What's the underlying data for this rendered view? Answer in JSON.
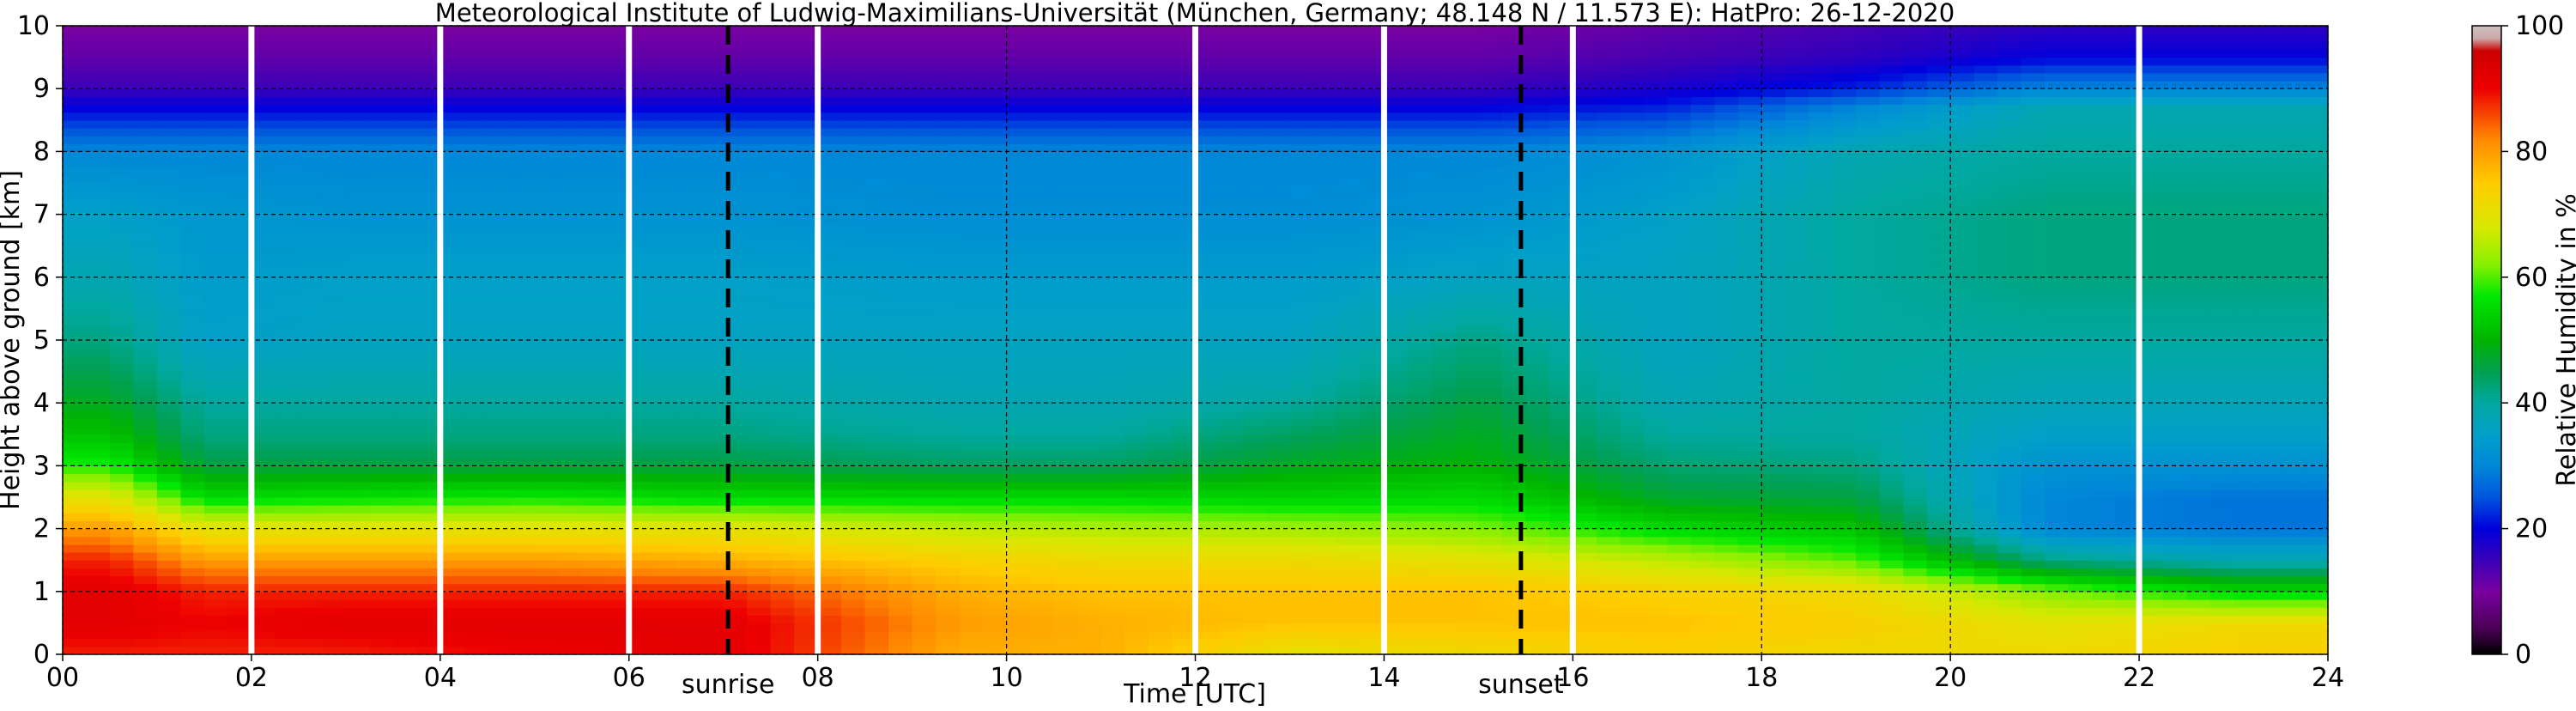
{
  "chart_data": {
    "type": "heatmap",
    "title": "Meteorological Institute of Ludwig-Maximilians-Universität (München, Germany; 48.148 N / 11.573 E):    HatPro: 26-12-2020",
    "xlabel": "Time [UTC]",
    "ylabel": "Height above ground [km]",
    "xlim": [
      0,
      24
    ],
    "ylim": [
      0,
      10
    ],
    "x_ticks": [
      "00",
      "02",
      "04",
      "06",
      "08",
      "10",
      "12",
      "14",
      "16",
      "18",
      "20",
      "22",
      "24"
    ],
    "y_ticks": [
      "0",
      "1",
      "2",
      "3",
      "4",
      "5",
      "6",
      "7",
      "8",
      "9",
      "10"
    ],
    "grid": true,
    "colorbar": {
      "label": "Relative Humidity in %",
      "range": [
        0,
        100
      ],
      "ticks": [
        "0",
        "20",
        "40",
        "60",
        "80",
        "100"
      ]
    },
    "white_gaps_utc": [
      2,
      4,
      6,
      8,
      12,
      14,
      16,
      22
    ],
    "events": [
      {
        "label": "sunrise",
        "time_utc": 7.05
      },
      {
        "label": "sunset",
        "time_utc": 15.45
      }
    ],
    "profiles": [
      {
        "time_utc": 0.5,
        "heights_km": [
          0,
          0.5,
          1.0,
          1.5,
          2.0,
          2.5,
          3.0,
          3.5,
          4.0,
          5.0,
          6.0,
          7.0,
          8.0,
          8.7,
          9.0,
          9.5,
          10.0
        ],
        "rh_percent": [
          88,
          92,
          92,
          88,
          80,
          70,
          58,
          52,
          48,
          42,
          38,
          35,
          30,
          20,
          15,
          12,
          10
        ]
      },
      {
        "time_utc": 1.5,
        "heights_km": [
          0,
          0.5,
          1.0,
          1.5,
          2.0,
          2.5,
          3.0,
          3.5,
          4.0,
          5.0,
          6.0,
          7.0,
          8.0,
          8.7,
          9.0,
          9.5,
          10.0
        ],
        "rh_percent": [
          88,
          90,
          88,
          80,
          70,
          55,
          46,
          42,
          40,
          35,
          34,
          33,
          30,
          20,
          15,
          12,
          10
        ]
      },
      {
        "time_utc": 3.0,
        "heights_km": [
          0,
          0.5,
          1.0,
          1.5,
          2.0,
          2.5,
          3.0,
          3.5,
          4.0,
          5.0,
          6.0,
          7.0,
          8.0,
          8.7,
          9.0,
          9.5,
          10.0
        ],
        "rh_percent": [
          88,
          92,
          88,
          80,
          70,
          56,
          46,
          42,
          40,
          36,
          35,
          32,
          30,
          20,
          15,
          12,
          10
        ]
      },
      {
        "time_utc": 5.0,
        "heights_km": [
          0,
          0.5,
          1.0,
          1.5,
          2.0,
          2.5,
          3.0,
          3.5,
          4.0,
          5.0,
          6.0,
          7.0,
          8.0,
          8.7,
          9.0,
          9.5,
          10.0
        ],
        "rh_percent": [
          90,
          92,
          88,
          80,
          70,
          57,
          46,
          42,
          40,
          36,
          35,
          32,
          30,
          20,
          15,
          12,
          10
        ]
      },
      {
        "time_utc": 7.0,
        "heights_km": [
          0,
          0.5,
          1.0,
          1.5,
          2.0,
          2.5,
          3.0,
          3.5,
          4.0,
          5.0,
          6.0,
          7.0,
          8.0,
          8.7,
          9.0,
          9.5,
          10.0
        ],
        "rh_percent": [
          92,
          92,
          88,
          78,
          70,
          55,
          46,
          42,
          40,
          36,
          35,
          32,
          30,
          20,
          15,
          12,
          10
        ]
      },
      {
        "time_utc": 9.5,
        "heights_km": [
          0,
          0.5,
          1.0,
          1.5,
          2.0,
          2.5,
          3.0,
          3.5,
          4.0,
          5.0,
          6.0,
          7.0,
          8.0,
          8.7,
          9.0,
          9.5,
          10.0
        ],
        "rh_percent": [
          78,
          80,
          78,
          74,
          66,
          55,
          44,
          40,
          38,
          36,
          34,
          31,
          30,
          20,
          15,
          12,
          10
        ]
      },
      {
        "time_utc": 11.0,
        "heights_km": [
          0,
          0.5,
          1.0,
          1.5,
          2.0,
          2.5,
          3.0,
          3.5,
          4.0,
          5.0,
          6.0,
          7.0,
          8.0,
          8.7,
          9.0,
          9.5,
          10.0
        ],
        "rh_percent": [
          78,
          78,
          76,
          72,
          65,
          55,
          44,
          40,
          38,
          36,
          34,
          31,
          30,
          20,
          15,
          12,
          10
        ]
      },
      {
        "time_utc": 13.0,
        "heights_km": [
          0,
          0.5,
          1.0,
          1.5,
          2.0,
          2.5,
          3.0,
          3.5,
          4.0,
          5.0,
          6.0,
          7.0,
          8.0,
          8.7,
          9.0,
          9.5,
          10.0
        ],
        "rh_percent": [
          70,
          76,
          76,
          72,
          64,
          54,
          48,
          44,
          40,
          36,
          34,
          31,
          30,
          20,
          15,
          12,
          10
        ]
      },
      {
        "time_utc": 15.0,
        "heights_km": [
          0,
          0.5,
          1.0,
          1.5,
          2.0,
          2.5,
          3.0,
          3.5,
          4.0,
          5.0,
          6.0,
          7.0,
          8.0,
          8.7,
          9.0,
          9.5,
          10.0
        ],
        "rh_percent": [
          72,
          76,
          76,
          70,
          62,
          55,
          50,
          48,
          46,
          42,
          36,
          32,
          30,
          20,
          15,
          12,
          10
        ]
      },
      {
        "time_utc": 17.0,
        "heights_km": [
          0,
          0.5,
          1.0,
          1.5,
          2.0,
          2.5,
          3.0,
          3.5,
          4.0,
          5.0,
          6.0,
          7.0,
          8.0,
          8.7,
          9.0,
          9.5,
          10.0
        ],
        "rh_percent": [
          74,
          76,
          74,
          66,
          55,
          47,
          43,
          40,
          38,
          36,
          36,
          35,
          32,
          22,
          18,
          14,
          12
        ]
      },
      {
        "time_utc": 19.0,
        "heights_km": [
          0,
          0.5,
          1.0,
          1.5,
          2.0,
          2.5,
          3.0,
          3.5,
          4.0,
          5.0,
          6.0,
          7.0,
          8.0,
          8.7,
          9.0,
          9.5,
          10.0
        ],
        "rh_percent": [
          72,
          74,
          72,
          60,
          52,
          46,
          42,
          40,
          40,
          40,
          40,
          40,
          38,
          30,
          22,
          16,
          14
        ]
      },
      {
        "time_utc": 21.0,
        "heights_km": [
          0,
          0.5,
          1.0,
          1.5,
          2.0,
          2.5,
          3.0,
          3.5,
          4.0,
          5.0,
          6.0,
          7.0,
          8.0,
          8.7,
          9.0,
          9.5,
          10.0
        ],
        "rh_percent": [
          72,
          70,
          62,
          42,
          30,
          30,
          32,
          35,
          37,
          40,
          42,
          42,
          40,
          38,
          30,
          20,
          16
        ]
      },
      {
        "time_utc": 23.0,
        "heights_km": [
          0,
          0.5,
          1.0,
          1.5,
          2.0,
          2.5,
          3.0,
          3.5,
          4.0,
          5.0,
          6.0,
          7.0,
          8.0,
          8.7,
          9.0,
          9.5,
          10.0
        ],
        "rh_percent": [
          74,
          72,
          55,
          38,
          28,
          28,
          32,
          35,
          37,
          40,
          42,
          42,
          40,
          38,
          30,
          20,
          16
        ]
      }
    ],
    "colormap": [
      {
        "value": 0,
        "color": "#000000"
      },
      {
        "value": 4,
        "color": "#4a0055"
      },
      {
        "value": 10,
        "color": "#7a00a0"
      },
      {
        "value": 15,
        "color": "#3a00b8"
      },
      {
        "value": 20,
        "color": "#0000dd"
      },
      {
        "value": 25,
        "color": "#0055dd"
      },
      {
        "value": 30,
        "color": "#0088d8"
      },
      {
        "value": 35,
        "color": "#00a0c8"
      },
      {
        "value": 40,
        "color": "#00a8a0"
      },
      {
        "value": 45,
        "color": "#00a050"
      },
      {
        "value": 50,
        "color": "#00b400"
      },
      {
        "value": 57,
        "color": "#00e800"
      },
      {
        "value": 62,
        "color": "#88f000"
      },
      {
        "value": 68,
        "color": "#d8e800"
      },
      {
        "value": 75,
        "color": "#ffcc00"
      },
      {
        "value": 82,
        "color": "#ff8800"
      },
      {
        "value": 90,
        "color": "#ee0000"
      },
      {
        "value": 96,
        "color": "#cc0000"
      },
      {
        "value": 98,
        "color": "#ccaaaa"
      },
      {
        "value": 100,
        "color": "#ccc0c0"
      }
    ]
  }
}
